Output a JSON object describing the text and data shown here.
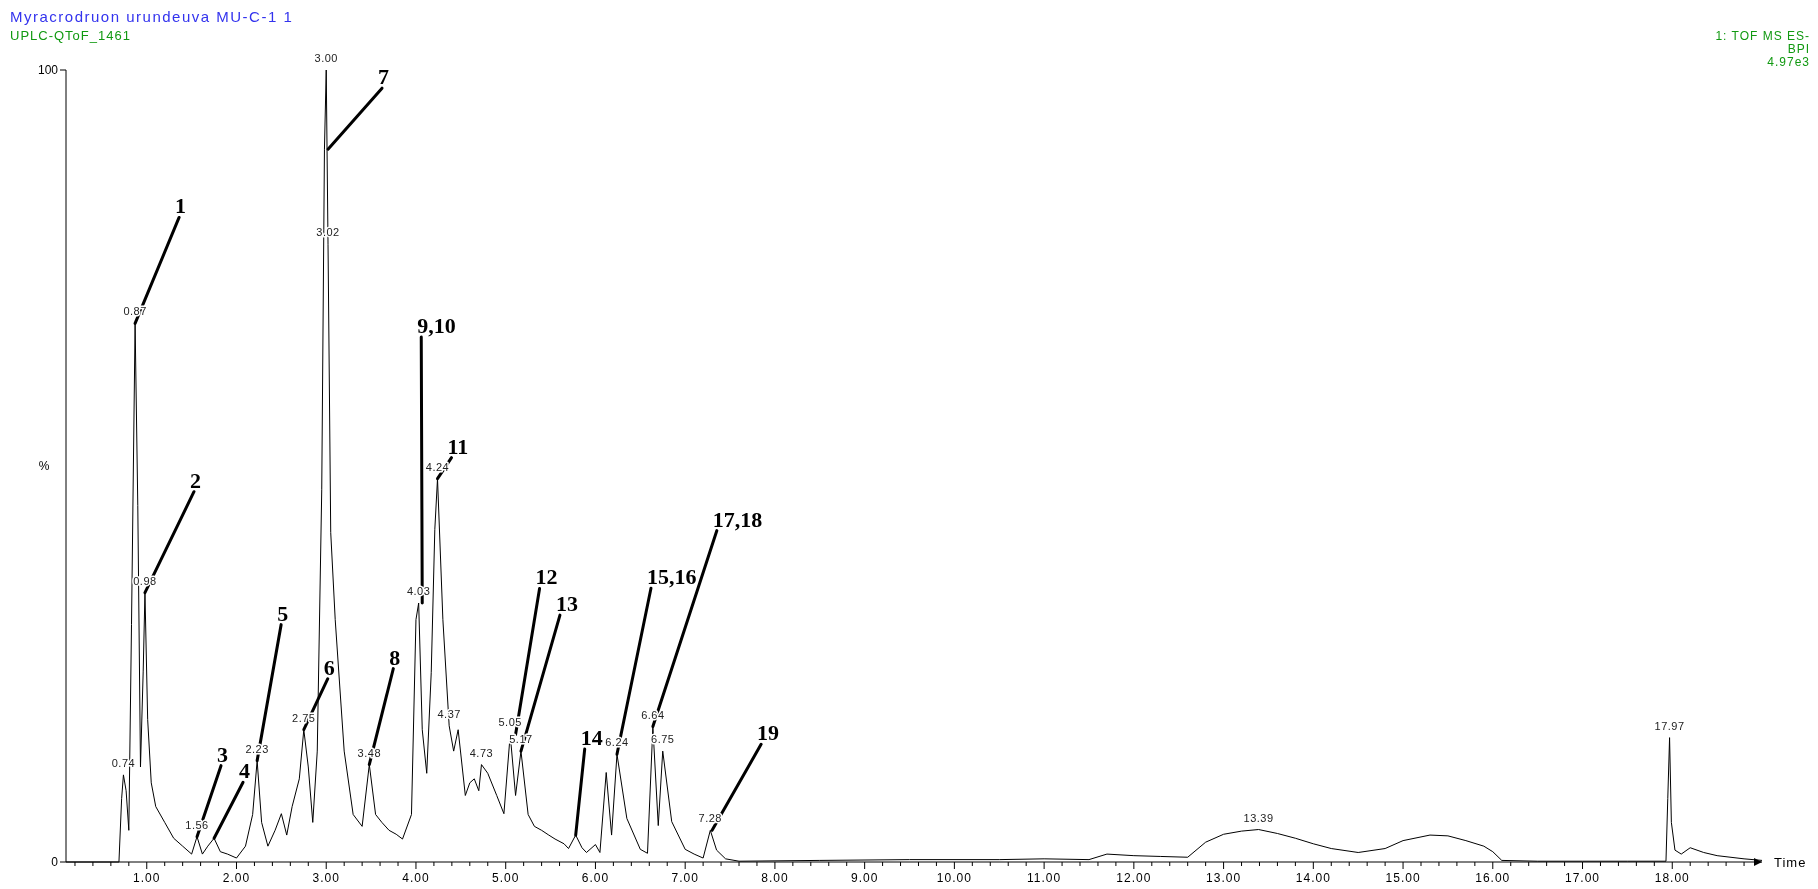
{
  "chart_data": {
    "type": "line",
    "title": "Myracrodruon urundeuva  MU-C-1  1",
    "subtitle": "UPLC-QToF_1461",
    "xlabel": "Time",
    "ylabel": "%",
    "xlim": [
      0.1,
      19.0
    ],
    "ylim": [
      0,
      100
    ],
    "yticks": [
      0,
      100
    ],
    "xticks": [
      {
        "value": 0.2,
        "label": null
      },
      {
        "value": 0.4,
        "label": null
      },
      {
        "value": 0.6,
        "label": null
      },
      {
        "value": 0.8,
        "label": null
      },
      {
        "value": 1,
        "label": "1.00"
      },
      {
        "value": 1.2,
        "label": null
      },
      {
        "value": 1.4,
        "label": null
      },
      {
        "value": 1.6,
        "label": null
      },
      {
        "value": 1.8,
        "label": null
      },
      {
        "value": 2,
        "label": "2.00"
      },
      {
        "value": 2.2,
        "label": null
      },
      {
        "value": 2.4,
        "label": null
      },
      {
        "value": 2.6,
        "label": null
      },
      {
        "value": 2.8,
        "label": null
      },
      {
        "value": 3,
        "label": "3.00"
      },
      {
        "value": 3.2,
        "label": null
      },
      {
        "value": 3.4,
        "label": null
      },
      {
        "value": 3.6,
        "label": null
      },
      {
        "value": 3.8,
        "label": null
      },
      {
        "value": 4,
        "label": "4.00"
      },
      {
        "value": 4.2,
        "label": null
      },
      {
        "value": 4.4,
        "label": null
      },
      {
        "value": 4.6,
        "label": null
      },
      {
        "value": 4.8,
        "label": null
      },
      {
        "value": 5,
        "label": "5.00"
      },
      {
        "value": 5.2,
        "label": null
      },
      {
        "value": 5.4,
        "label": null
      },
      {
        "value": 5.6,
        "label": null
      },
      {
        "value": 5.8,
        "label": null
      },
      {
        "value": 6,
        "label": "6.00"
      },
      {
        "value": 6.2,
        "label": null
      },
      {
        "value": 6.4,
        "label": null
      },
      {
        "value": 6.6,
        "label": null
      },
      {
        "value": 6.8,
        "label": null
      },
      {
        "value": 7,
        "label": "7.00"
      },
      {
        "value": 7.2,
        "label": null
      },
      {
        "value": 7.4,
        "label": null
      },
      {
        "value": 7.6,
        "label": null
      },
      {
        "value": 7.8,
        "label": null
      },
      {
        "value": 8,
        "label": "8.00"
      },
      {
        "value": 8.2,
        "label": null
      },
      {
        "value": 8.4,
        "label": null
      },
      {
        "value": 8.6,
        "label": null
      },
      {
        "value": 8.8,
        "label": null
      },
      {
        "value": 9,
        "label": "9.00"
      },
      {
        "value": 9.2,
        "label": null
      },
      {
        "value": 9.4,
        "label": null
      },
      {
        "value": 9.6,
        "label": null
      },
      {
        "value": 9.8,
        "label": null
      },
      {
        "value": 10,
        "label": "10.00"
      },
      {
        "value": 10.2,
        "label": null
      },
      {
        "value": 10.4,
        "label": null
      },
      {
        "value": 10.6,
        "label": null
      },
      {
        "value": 10.8,
        "label": null
      },
      {
        "value": 11,
        "label": "11.00"
      },
      {
        "value": 11.2,
        "label": null
      },
      {
        "value": 11.4,
        "label": null
      },
      {
        "value": 11.6,
        "label": null
      },
      {
        "value": 11.8,
        "label": null
      },
      {
        "value": 12,
        "label": "12.00"
      },
      {
        "value": 12.2,
        "label": null
      },
      {
        "value": 12.4,
        "label": null
      },
      {
        "value": 12.6,
        "label": null
      },
      {
        "value": 12.8,
        "label": null
      },
      {
        "value": 13,
        "label": "13.00"
      },
      {
        "value": 13.2,
        "label": null
      },
      {
        "value": 13.4,
        "label": null
      },
      {
        "value": 13.6,
        "label": null
      },
      {
        "value": 13.8,
        "label": null
      },
      {
        "value": 14,
        "label": "14.00"
      },
      {
        "value": 14.2,
        "label": null
      },
      {
        "value": 14.4,
        "label": null
      },
      {
        "value": 14.6,
        "label": null
      },
      {
        "value": 14.8,
        "label": null
      },
      {
        "value": 15,
        "label": "15.00"
      },
      {
        "value": 15.2,
        "label": null
      },
      {
        "value": 15.4,
        "label": null
      },
      {
        "value": 15.6,
        "label": null
      },
      {
        "value": 15.8,
        "label": null
      },
      {
        "value": 16,
        "label": "16.00"
      },
      {
        "value": 16.2,
        "label": null
      },
      {
        "value": 16.4,
        "label": null
      },
      {
        "value": 16.6,
        "label": null
      },
      {
        "value": 16.8,
        "label": null
      },
      {
        "value": 17,
        "label": "17.00"
      },
      {
        "value": 17.2,
        "label": null
      },
      {
        "value": 17.4,
        "label": null
      },
      {
        "value": 17.6,
        "label": null
      },
      {
        "value": 17.8,
        "label": null
      },
      {
        "value": 18,
        "label": "18.00"
      },
      {
        "value": 18.2,
        "label": null
      },
      {
        "value": 18.4,
        "label": null
      },
      {
        "value": 18.6,
        "label": null
      },
      {
        "value": 18.8,
        "label": null
      }
    ],
    "series": [
      {
        "color": "#000000",
        "x": [
          0.1,
          0.69,
          0.72,
          0.74,
          0.77,
          0.8,
          0.83,
          0.87,
          0.9,
          0.93,
          0.96,
          0.98,
          1.01,
          1.05,
          1.1,
          1.2,
          1.3,
          1.4,
          1.5,
          1.56,
          1.62,
          1.68,
          1.75,
          1.82,
          1.9,
          2.0,
          2.1,
          2.18,
          2.23,
          2.28,
          2.35,
          2.43,
          2.5,
          2.56,
          2.62,
          2.7,
          2.75,
          2.8,
          2.85,
          2.9,
          2.95,
          2.98,
          3.0,
          3.02,
          3.05,
          3.1,
          3.2,
          3.3,
          3.4,
          3.48,
          3.55,
          3.62,
          3.7,
          3.78,
          3.85,
          3.95,
          4.0,
          4.03,
          4.07,
          4.12,
          4.17,
          4.21,
          4.24,
          4.3,
          4.37,
          4.42,
          4.47,
          4.55,
          4.6,
          4.65,
          4.7,
          4.73,
          4.8,
          4.9,
          4.98,
          5.05,
          5.11,
          5.17,
          5.25,
          5.32,
          5.4,
          5.48,
          5.55,
          5.65,
          5.7,
          5.78,
          5.85,
          5.9,
          6.0,
          6.05,
          6.12,
          6.18,
          6.24,
          6.35,
          6.5,
          6.58,
          6.64,
          6.7,
          6.75,
          6.85,
          7.0,
          7.1,
          7.2,
          7.28,
          7.35,
          7.45,
          7.6,
          8.5,
          9.5,
          10.5,
          11.0,
          11.5,
          11.7,
          12.0,
          12.3,
          12.6,
          12.8,
          13.0,
          13.2,
          13.39,
          13.6,
          13.8,
          14.0,
          14.2,
          14.5,
          14.8,
          15.0,
          15.3,
          15.5,
          15.7,
          15.9,
          16.0,
          16.1,
          16.5,
          17.0,
          17.5,
          17.93,
          17.95,
          17.97,
          17.99,
          18.03,
          18.1,
          18.2,
          18.35,
          18.5,
          18.8,
          19.0
        ],
        "values": [
          0,
          0,
          8,
          11,
          9,
          4,
          30,
          68,
          45,
          12,
          24,
          34,
          18,
          10,
          7,
          5,
          3,
          2,
          1,
          3.2,
          1,
          2,
          3,
          1.3,
          1,
          0.5,
          2,
          6,
          12.8,
          5,
          2,
          4,
          6.1,
          3.4,
          7,
          10.5,
          16.7,
          12,
          5,
          14,
          47,
          90,
          100,
          78,
          41.6,
          30.6,
          14,
          6,
          4.5,
          12.3,
          6,
          5,
          4,
          3.5,
          2.9,
          6,
          30.6,
          32.7,
          16.7,
          11.2,
          23.9,
          42,
          48.4,
          30.6,
          17.2,
          14,
          16.7,
          8.4,
          10,
          10.5,
          9,
          12.3,
          11.2,
          8.4,
          6.1,
          16.1,
          8.4,
          14,
          6,
          4.5,
          4,
          3.4,
          2.9,
          2.3,
          1.7,
          3.4,
          1.8,
          1.2,
          2.2,
          1.2,
          11.3,
          3.4,
          13.6,
          5.5,
          1.6,
          1.1,
          17.1,
          4.6,
          14,
          5.1,
          1.6,
          1,
          0.5,
          4,
          1.5,
          0.4,
          0.1,
          0.2,
          0.3,
          0.3,
          0.4,
          0.3,
          1,
          0.8,
          0.7,
          0.6,
          2.5,
          3.5,
          3.9,
          4.1,
          3.6,
          3,
          2.3,
          1.7,
          1.2,
          1.7,
          2.7,
          3.4,
          3.3,
          2.7,
          2,
          1.3,
          0.2,
          0.1,
          0.1,
          0.1,
          0.1,
          8,
          15.7,
          5,
          1.5,
          1,
          1.8,
          1.2,
          0.8,
          0.4,
          0.2
        ]
      }
    ],
    "annotations": [
      "1: TOF MS ES-",
      "BPI",
      "4.97e3",
      {
        "text": "0.74",
        "x": 0.74,
        "y": 11
      },
      {
        "text": "0.87",
        "x": 0.87,
        "y": 68
      },
      {
        "text": "0.98",
        "x": 0.98,
        "y": 34
      },
      {
        "text": "1.56",
        "x": 1.56,
        "y": 3.2
      },
      {
        "text": "2.23",
        "x": 2.23,
        "y": 12.8
      },
      {
        "text": "2.75",
        "x": 2.75,
        "y": 16.7
      },
      {
        "text": "3.00",
        "x": 3.0,
        "y": 100
      },
      {
        "text": "3.02",
        "x": 3.02,
        "y": 78
      },
      {
        "text": "3.48",
        "x": 3.48,
        "y": 12.3
      },
      {
        "text": "4.03",
        "x": 4.03,
        "y": 32.7
      },
      {
        "text": "4.24",
        "x": 4.24,
        "y": 48.4
      },
      {
        "text": "4.37",
        "x": 4.37,
        "y": 17.2
      },
      {
        "text": "4.73",
        "x": 4.73,
        "y": 12.3
      },
      {
        "text": "5.05",
        "x": 5.05,
        "y": 16.1
      },
      {
        "text": "5.17",
        "x": 5.17,
        "y": 14
      },
      {
        "text": "6.24",
        "x": 6.24,
        "y": 13.6
      },
      {
        "text": "6.64",
        "x": 6.64,
        "y": 17.1
      },
      {
        "text": "6.75",
        "x": 6.75,
        "y": 14
      },
      {
        "text": "7.28",
        "x": 7.28,
        "y": 4
      },
      {
        "text": "13.39",
        "x": 13.39,
        "y": 4.1
      },
      {
        "text": "17.97",
        "x": 17.97,
        "y": 15.7
      },
      {
        "text": "1",
        "x": 0.87,
        "y": 68
      },
      {
        "text": "2",
        "x": 0.98,
        "y": 34
      },
      {
        "text": "3",
        "x": 1.56,
        "y": 3.2
      },
      {
        "text": "4",
        "x": 1.75,
        "y": 3
      },
      {
        "text": "5",
        "x": 2.23,
        "y": 12.8
      },
      {
        "text": "6",
        "x": 2.75,
        "y": 16.7
      },
      {
        "text": "7",
        "x": 3.02,
        "y": 90
      },
      {
        "text": "8",
        "x": 3.48,
        "y": 12.3
      },
      {
        "text": "9,10",
        "x": 4.07,
        "y": 32.7
      },
      {
        "text": "11",
        "x": 4.24,
        "y": 48.4
      },
      {
        "text": "12",
        "x": 5.11,
        "y": 16.1
      },
      {
        "text": "13",
        "x": 5.17,
        "y": 14
      },
      {
        "text": "14",
        "x": 5.78,
        "y": 3.4
      },
      {
        "text": "15,16",
        "x": 6.24,
        "y": 13.6
      },
      {
        "text": "17,18",
        "x": 6.64,
        "y": 17.1
      },
      {
        "text": "19",
        "x": 7.3,
        "y": 4
      }
    ]
  }
}
